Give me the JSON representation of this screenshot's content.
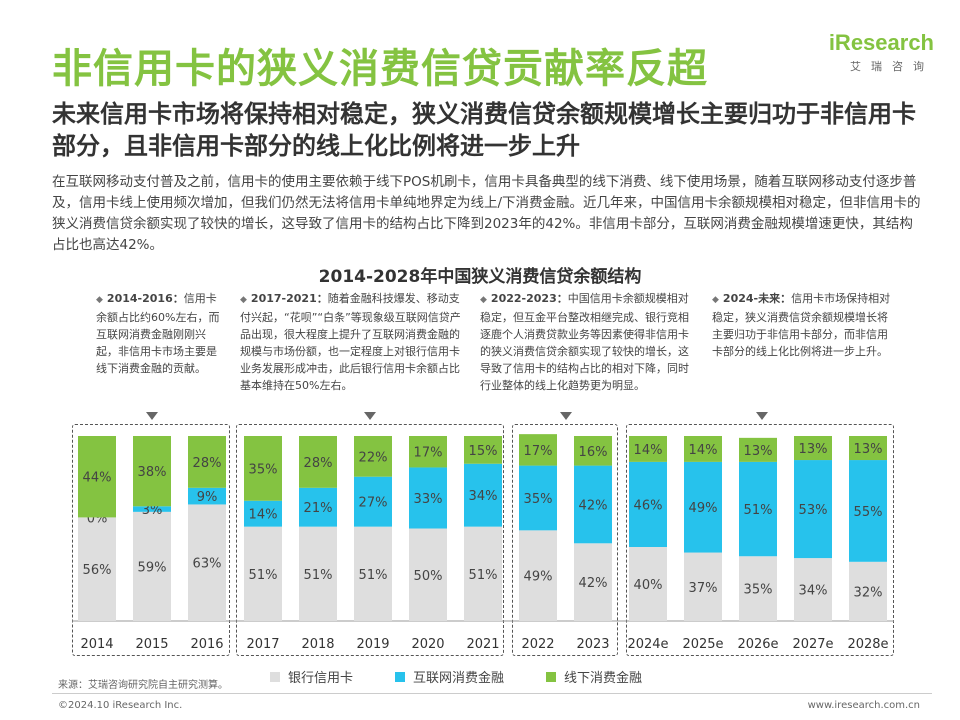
{
  "header": {
    "title": "非信用卡的狭义消费信贷贡献率反超",
    "logo_main": "iResearch",
    "logo_sub": "艾瑞咨询"
  },
  "subtitle": "未来信用卡市场将保持相对稳定，狭义消费信贷余额规模增长主要归功于非信用卡部分，且非信用卡部分的线上化比例将进一步上升",
  "description": "在互联网移动支付普及之前，信用卡的使用主要依赖于线下POS机刷卡，信用卡具备典型的线下消费、线下使用场景，随着互联网移动支付逐步普及，信用卡线上使用频次增加，但我们仍然无法将信用卡单纯地界定为线上/下消费金融。近几年来，中国信用卡余额规模相对稳定，但非信用卡的狭义消费信贷余额实现了较快的增长，这导致了信用卡的结构占比下降到2023年的42%。非信用卡部分，互联网消费金融规模增速更快，其结构占比也高达42%。",
  "annotations": [
    {
      "period": "2014-2016：",
      "text": "信用卡余额占比约60%左右，而互联网消费金融刚刚兴起，非信用卡市场主要是线下消费金融的贡献。"
    },
    {
      "period": "2017-2021：",
      "text": "随着金融科技爆发、移动支付兴起，“花呗”“白条”等现象级互联网信贷产品出现，很大程度上提升了互联网消费金融的规模与市场份额，也一定程度上对银行信用卡业务发展形成冲击，此后银行信用卡余额占比基本维持在50%左右。"
    },
    {
      "period": "2022-2023：",
      "text": "中国信用卡余额规模相对稳定，但互金平台整改相继完成、银行竞相逐鹿个人消费贷款业务等因素使得非信用卡的狭义消费信贷余额实现了较快的增长，这导致了信用卡的结构占比的相对下降，同时行业整体的线上化趋势更为明显。"
    },
    {
      "period": "2024-未来：",
      "text": "信用卡市场保持相对稳定，狭义消费信贷余额规模增长将主要归功于非信用卡部分，而非信用卡部分的线上化比例将进一步上升。"
    }
  ],
  "chart_data": {
    "type": "bar",
    "stacked": true,
    "normalized": true,
    "title": "2014-2028年中国狭义消费信贷余额结构",
    "categories": [
      "2014",
      "2015",
      "2016",
      "2017",
      "2018",
      "2019",
      "2020",
      "2021",
      "2022",
      "2023",
      "2024e",
      "2025e",
      "2026e",
      "2027e",
      "2028e"
    ],
    "series": [
      {
        "name": "银行信用卡",
        "color": "#dedede",
        "values": [
          56,
          59,
          63,
          51,
          51,
          51,
          50,
          51,
          49,
          42,
          40,
          37,
          35,
          34,
          32
        ]
      },
      {
        "name": "互联网消费金融",
        "color": "#27c2ec",
        "values": [
          0,
          3,
          9,
          14,
          21,
          27,
          33,
          34,
          35,
          42,
          46,
          49,
          51,
          53,
          55
        ]
      },
      {
        "name": "线下消费金融",
        "color": "#84c341",
        "values": [
          44,
          38,
          28,
          35,
          28,
          22,
          17,
          15,
          17,
          16,
          14,
          14,
          13,
          13,
          13
        ]
      }
    ],
    "labels": {
      "银行信用卡": [
        "56%",
        "59%",
        "63%",
        "51%",
        "51%",
        "51%",
        "50%",
        "51%",
        "49%",
        "42%",
        "40%",
        "37%",
        "35%",
        "34%",
        "32%"
      ],
      "互联网消费金融": [
        "0%",
        "3%",
        "9%",
        "14%",
        "21%",
        "27%",
        "33%",
        "34%",
        "35%",
        "42%",
        "46%",
        "49%",
        "51%",
        "53%",
        "55%"
      ],
      "线下消费金融": [
        "44%",
        "38%",
        "28%",
        "35%",
        "28%",
        "22%",
        "17%",
        "15%",
        "17%",
        "16%",
        "14%",
        "14%",
        "13%",
        "13%",
        "13%"
      ]
    },
    "groups": [
      [
        "2014",
        "2016"
      ],
      [
        "2017",
        "2021"
      ],
      [
        "2022",
        "2023"
      ],
      [
        "2024e",
        "2028e"
      ]
    ],
    "ylim": [
      0,
      100
    ],
    "legend_position": "bottom",
    "grid": false
  },
  "legend": [
    "银行信用卡",
    "互联网消费金融",
    "线下消费金融"
  ],
  "source": "来源：艾瑞咨询研究院自主研究测算。",
  "footer": {
    "copyright": "©2024.10 iResearch Inc.",
    "url": "www.iresearch.com.cn"
  }
}
